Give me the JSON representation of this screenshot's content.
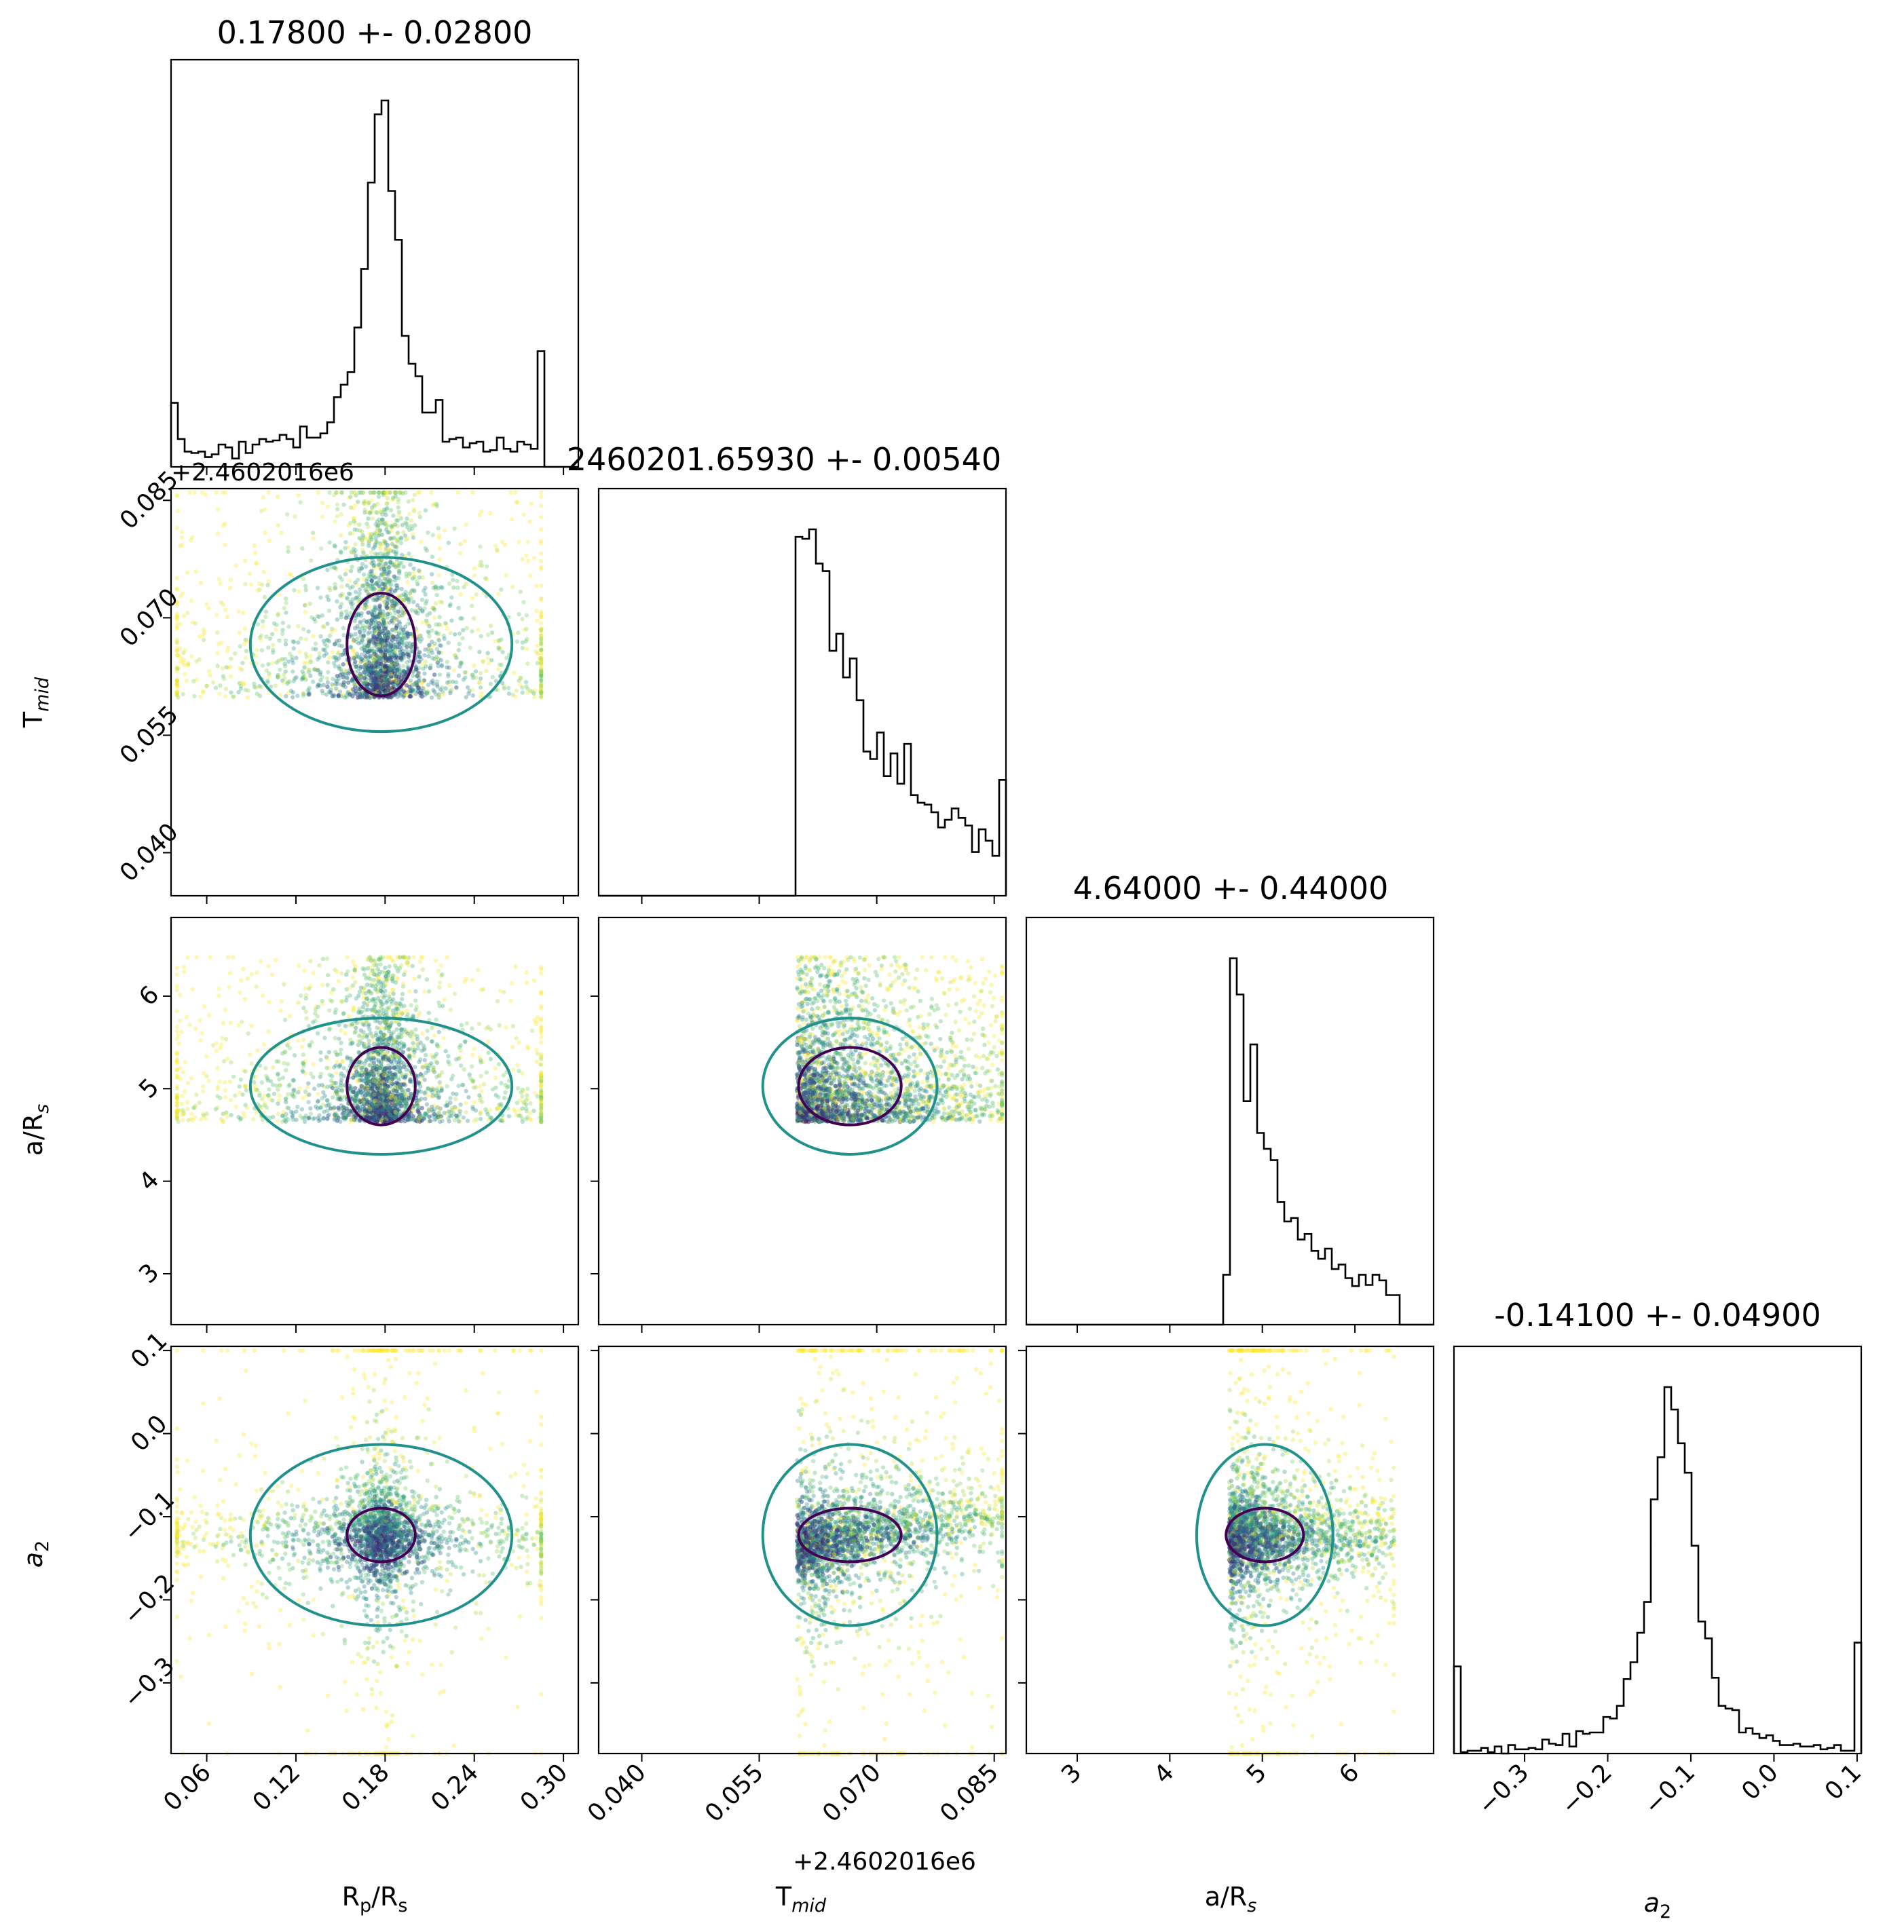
{
  "chart_data": {
    "type": "corner",
    "parameters": [
      {
        "key": "rp",
        "axis_label": "R",
        "axis_label_sub": "p",
        "axis_label_tail": "/R",
        "axis_label_tail_sub": "s",
        "title": "0.17800 +- 0.02800",
        "range": [
          0.036,
          0.31
        ],
        "ticks": [
          "0.06",
          "0.12",
          "0.18",
          "0.24",
          "0.30"
        ],
        "tick_values": [
          0.06,
          0.12,
          0.18,
          0.24,
          0.3
        ]
      },
      {
        "key": "tmid",
        "axis_label": "T",
        "axis_label_sub": "mid",
        "title": "2460201.65930 +- 0.00540",
        "range": [
          0.0345,
          0.0865
        ],
        "offset_text": "+2.4602016e6",
        "ticks": [
          "0.040",
          "0.055",
          "0.070",
          "0.085"
        ],
        "tick_values": [
          0.04,
          0.055,
          0.07,
          0.085
        ]
      },
      {
        "key": "ars",
        "axis_label": "a/R",
        "axis_label_sub": "s",
        "title": "4.64000 +- 0.44000",
        "range": [
          2.45,
          6.85
        ],
        "ticks": [
          "3",
          "4",
          "5",
          "6"
        ],
        "tick_values": [
          3,
          4,
          5,
          6
        ]
      },
      {
        "key": "a2",
        "axis_label": "a",
        "axis_label_sub": "2",
        "title": "-0.14100 +- 0.04900",
        "range": [
          -0.385,
          0.105
        ],
        "ticks": [
          "−0.3",
          "−0.2",
          "−0.1",
          "0.0",
          "0.1"
        ],
        "tick_values": [
          -0.3,
          -0.2,
          -0.1,
          0.0,
          0.1
        ]
      }
    ],
    "colormap": "viridis",
    "contour_colors": [
      "#440154",
      "#21918c",
      "#fde725"
    ],
    "hist_color": "#000000"
  }
}
